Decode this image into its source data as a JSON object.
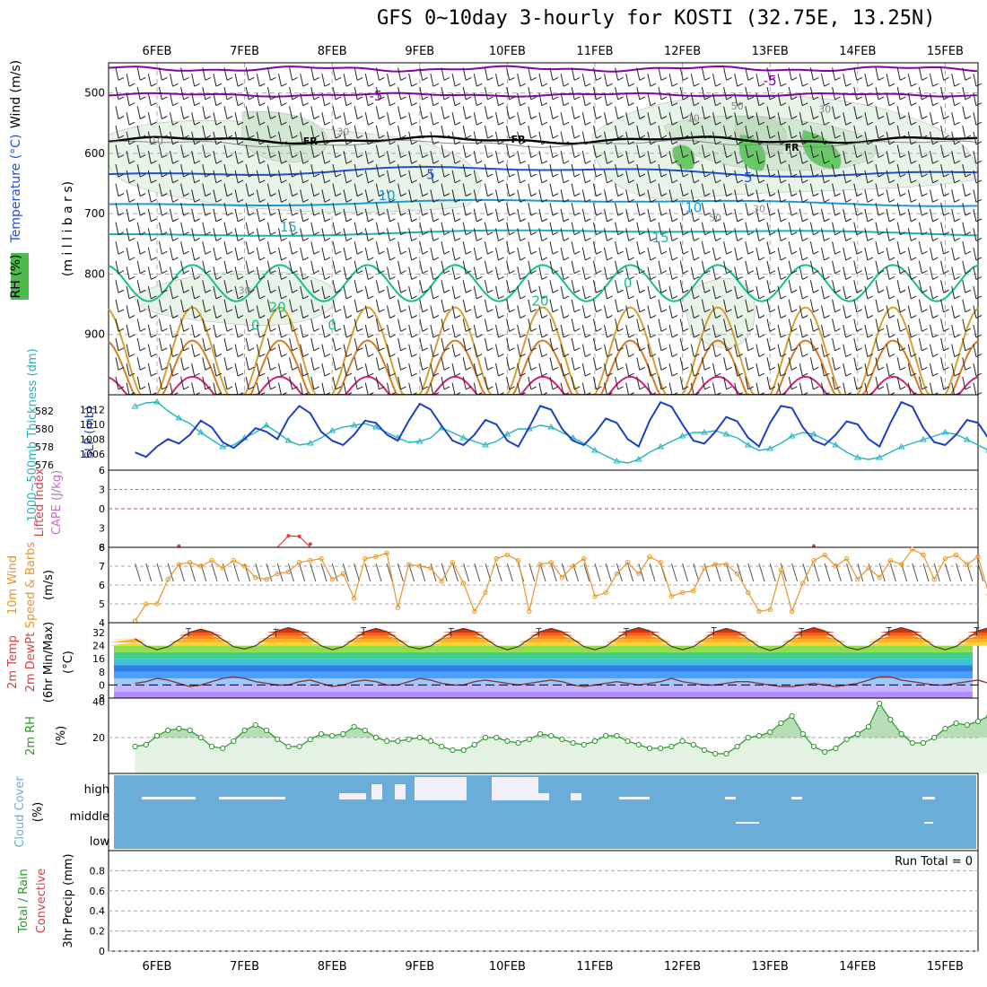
{
  "title": "GFS 0~10day 3-hourly for KOSTI (32.75E, 13.25N)",
  "dates": [
    "6FEB",
    "7FEB",
    "8FEB",
    "9FEB",
    "10FEB",
    "11FEB",
    "12FEB",
    "13FEB",
    "14FEB",
    "15FEB"
  ],
  "colors": {
    "freezing": "#000000",
    "temp_minus5": "#8800aa",
    "temp_5": "#1f4fd8",
    "temp_10": "#1a9ad6",
    "temp_15": "#16b2b8",
    "temp_20": "#12c08c",
    "temp_25": "#d6a030",
    "temp_30": "#d77a20",
    "temp_35": "#d41e7a",
    "slp": "#1a3fc8",
    "thickness": "#22b5c0",
    "lifted_index": "#d84040",
    "cape": "#c070c0",
    "wind": "#e8962a",
    "rh": "#2a9a2a",
    "rh_fill": "#e4f2e4",
    "cloud": "#6aadd8",
    "cloud_gap": "#f2f0f8"
  },
  "chart_data": [
    {
      "panel": "upper-air",
      "type": "contour",
      "ylabel": "milli bars",
      "legend_labels": [
        "Wind (m/s)",
        "Temperature (°C)",
        "RH (%)"
      ],
      "yticks": [
        500,
        600,
        700,
        800,
        900
      ],
      "ylim": [
        1000,
        450
      ],
      "contour_labels": [
        {
          "text": "-5",
          "x": "8FEB 12Z",
          "y": 505
        },
        {
          "text": "-5",
          "x": "13FEB 00Z",
          "y": 480
        },
        {
          "text": "FR",
          "x": "7FEB 18Z",
          "y": 578
        },
        {
          "text": "FR",
          "x": "10FEB 03Z",
          "y": 575
        },
        {
          "text": "FR",
          "x": "13FEB 06Z",
          "y": 588
        },
        {
          "text": "5",
          "x": "9FEB 03Z",
          "y": 635
        },
        {
          "text": "5",
          "x": "12FEB 18Z",
          "y": 640
        },
        {
          "text": "10",
          "x": "8FEB 15Z",
          "y": 670
        },
        {
          "text": "10",
          "x": "12FEB 03Z",
          "y": 690
        },
        {
          "text": "15",
          "x": "7FEB 12Z",
          "y": 722
        },
        {
          "text": "15",
          "x": "11FEB 18Z",
          "y": 740
        },
        {
          "text": "0",
          "x": "11FEB 09Z",
          "y": 815
        },
        {
          "text": "20",
          "x": "7FEB 09Z",
          "y": 855
        },
        {
          "text": "20",
          "x": "10FEB 09Z",
          "y": 845
        },
        {
          "text": "0",
          "x": "7FEB 03Z",
          "y": 885
        },
        {
          "text": "0",
          "x": "8FEB 00Z",
          "y": 885
        },
        {
          "text": "10",
          "x": "6FEB 00Z",
          "y": 578
        },
        {
          "text": "30",
          "x": "8FEB 03Z",
          "y": 562
        },
        {
          "text": "10",
          "x": "12FEB 03Z",
          "y": 540
        },
        {
          "text": "50",
          "x": "12FEB 15Z",
          "y": 520
        },
        {
          "text": "30",
          "x": "13FEB 15Z",
          "y": 525
        },
        {
          "text": "30",
          "x": "7FEB 00Z",
          "y": 825
        },
        {
          "text": "50",
          "x": "12FEB 09Z",
          "y": 705
        },
        {
          "text": "30",
          "x": "12FEB 21Z",
          "y": 690
        }
      ]
    },
    {
      "panel": "slp-thickness",
      "type": "line",
      "ylabel": "SLP (mb)",
      "ylabel2": "1000~500mb Thickness (dm)",
      "yticks": [
        1006,
        1008,
        1010,
        1012
      ],
      "yticks2": [
        576,
        578,
        580,
        582
      ],
      "ylim": [
        1003.8,
        1014
      ],
      "ylim2": [
        575.4,
        583.8
      ],
      "series": [
        {
          "name": "SLP",
          "values": [
            1006.2,
            1005.6,
            1007,
            1008,
            1007.4,
            1008.6,
            1010.5,
            1009.6,
            1007.6,
            1006.8,
            1008,
            1009.5,
            1009,
            1008,
            1010.8,
            1012.5,
            1011.5,
            1009,
            1007.8,
            1007.2,
            1008.6,
            1010.5,
            1010.2,
            1008.6,
            1007.8,
            1010.5,
            1012.8,
            1012,
            1009.8,
            1007.8,
            1007.2,
            1008.6,
            1010.6,
            1010,
            1007.8,
            1007,
            1009.6,
            1012.5,
            1012,
            1009.4,
            1007.8,
            1007.2,
            1008.8,
            1010.8,
            1010.2,
            1008,
            1007,
            1010.5,
            1013,
            1012.4,
            1010,
            1007.8,
            1007.4,
            1009,
            1011,
            1010.4,
            1008.2,
            1007,
            1010.2,
            1012.5,
            1012.2,
            1009.6,
            1007.8,
            1007.2,
            1008.6,
            1010.4,
            1010,
            1008,
            1007,
            1010.2,
            1013,
            1012.4,
            1009.5,
            1007.6,
            1007.2,
            1008.6,
            1010.6,
            1010.2,
            1008,
            1007.2,
            1010,
            1012.4,
            1012,
            1009.5,
            1007.6,
            1007.4,
            1009,
            1010.8,
            1010.2,
            1008.2,
            1007.2,
            1009.6,
            1012,
            1011.8,
            1010,
            1008,
            1007.6,
            1009.4,
            1011,
            1010.4,
            1008.8,
            1008.2,
            1010.2,
            1012.8
          ]
        },
        {
          "name": "Thickness",
          "values": [
            582.5,
            582.9,
            583,
            582,
            581.2,
            580.6,
            579.6,
            578.8,
            578,
            578.2,
            579,
            579.6,
            580.4,
            579.6,
            578.7,
            578.2,
            578.4,
            579,
            579.8,
            580.2,
            580.4,
            580.6,
            580.2,
            579.6,
            579,
            578.5,
            578.6,
            579,
            580.1,
            579.6,
            579,
            578.6,
            578.2,
            578.6,
            579.4,
            580,
            580,
            580.4,
            580.2,
            579.6,
            579,
            578.4,
            577.6,
            577,
            576.4,
            576.2,
            576.6,
            577.4,
            578,
            578.6,
            579.2,
            579.6,
            579.6,
            579.8,
            579.4,
            579,
            578.2,
            577.6,
            577.8,
            578.4,
            579.2,
            579.6,
            579.4,
            578.8,
            578.2,
            577.4,
            576.8,
            576.6,
            576.8,
            577.4,
            578,
            578.4,
            578.8,
            579.2,
            579.6,
            579.4,
            578.8,
            578.2,
            577.6,
            577,
            576.6,
            576.4,
            576.2,
            576.8,
            577.4,
            578,
            578.6,
            579.2,
            579.6,
            579.8,
            579.4,
            578.8,
            578.2,
            577.8,
            578.2,
            579,
            579.8,
            580.6,
            580.2,
            579.4,
            578.6,
            577.8,
            577,
            576.6
          ]
        }
      ]
    },
    {
      "panel": "stability",
      "type": "line",
      "ylabel": "Lifted Index",
      "ylabel2": "CAPE (J/kg)",
      "yticks": [
        -6,
        -3,
        0,
        3,
        6
      ],
      "ylim": [
        -6,
        6
      ],
      "series": [
        {
          "name": "Lifted Index",
          "values": [
            6,
            6,
            6,
            5.2,
            6,
            6,
            6,
            6,
            6,
            6,
            6,
            6,
            6,
            6,
            6,
            6,
            5.4,
            6,
            6,
            6,
            6,
            6,
            6,
            6,
            6,
            6,
            6,
            6,
            6,
            6,
            6,
            6,
            6,
            6,
            6,
            6,
            6,
            6,
            6,
            6,
            6,
            6,
            6,
            6,
            6,
            6,
            6,
            6,
            6,
            6,
            6,
            6,
            6,
            6,
            6,
            6,
            6,
            6,
            6,
            6,
            6,
            6,
            6,
            6,
            6,
            6,
            6,
            6,
            6,
            6,
            6,
            6,
            6,
            6,
            6,
            6,
            6,
            6,
            6,
            6,
            6,
            6,
            6,
            6,
            6,
            6,
            6,
            6,
            6,
            6,
            6,
            6,
            6,
            6,
            6,
            6,
            6,
            6,
            6,
            6,
            6,
            6,
            6,
            6
          ],
          "marks": [
            {
              "x": "7FEB 12Z",
              "y": 4.2
            },
            {
              "x": "7FEB 15Z",
              "y": 4.3
            },
            {
              "x": "7FEB 18Z",
              "y": 5.5
            },
            {
              "x": "6FEB 06Z",
              "y": 5.8
            },
            {
              "x": "13FEB 12Z",
              "y": 5.8
            }
          ]
        }
      ]
    },
    {
      "panel": "wind10m",
      "type": "line",
      "ylabel": "10m Wind Speed & Barbs (m/s)",
      "yticks": [
        4,
        5,
        6,
        7,
        8
      ],
      "ylim": [
        4,
        8
      ],
      "series": [
        {
          "name": "Wind Speed",
          "values": [
            4.1,
            5,
            5,
            6.3,
            7.1,
            7.2,
            7,
            7.3,
            6.9,
            7.3,
            7,
            6.4,
            6.3,
            6.6,
            6.7,
            7.2,
            7.3,
            7.4,
            6.3,
            6.6,
            5.3,
            7.4,
            7.5,
            7.7,
            4.8,
            7.1,
            7,
            6.9,
            6.2,
            7.2,
            6.1,
            4.6,
            5.6,
            7.4,
            7.6,
            7.3,
            4.6,
            7.1,
            7.2,
            6.4,
            7,
            7.4,
            5.4,
            5.6,
            6.6,
            7.2,
            6.6,
            7.5,
            7.2,
            5.4,
            5.6,
            5.7,
            6.9,
            7.1,
            7.1,
            6.6,
            5.6,
            4.6,
            4.7,
            6.8,
            4.6,
            6.1,
            7.3,
            7.6,
            7,
            7.4,
            6.3,
            6.9,
            6.4,
            7.3,
            7.1,
            7.9,
            7.6,
            6.3,
            7.4,
            7.6,
            7.1,
            7.5,
            5.5,
            6.9,
            7.7,
            7.2,
            7.4,
            6.9,
            7.4,
            6.6,
            6.9,
            6.4,
            4.5,
            7.1,
            5.3,
            4.4,
            5.6,
            5.3,
            5.1,
            6.4,
            6.5,
            5,
            6.9,
            5.6,
            4.6,
            4.6,
            4.8,
            6.6
          ]
        }
      ]
    },
    {
      "panel": "temperature2m",
      "type": "area",
      "ylabel": "2m Temp 2m DewPt (6hr Min/Max) (°C)",
      "yticks": [
        -8,
        0,
        8,
        16,
        24,
        32
      ],
      "ylim": [
        -8,
        38
      ],
      "series": [
        {
          "name": "2m Temp",
          "daily_min": [
            22,
            21.5,
            22,
            21.5,
            22,
            21.5,
            21.5,
            21.5,
            21,
            21.5
          ],
          "daily_max": [
            34.5,
            34,
            35,
            34.5,
            34.5,
            34.5,
            35,
            34.5,
            35,
            35
          ]
        },
        {
          "name": "2m DewPt",
          "values": [
            1,
            2,
            4,
            3,
            1,
            -1,
            0,
            2,
            4,
            5,
            4,
            2,
            1,
            0,
            0,
            2,
            3,
            1,
            -1,
            0,
            2,
            3,
            2,
            0,
            0,
            2,
            4,
            3,
            1,
            0,
            0,
            2,
            3,
            2,
            1,
            0,
            1,
            2,
            3,
            2,
            0,
            -1,
            0,
            1,
            2,
            1,
            0,
            1,
            2,
            4,
            2,
            1,
            0,
            0,
            1,
            2,
            2,
            1,
            0,
            -1,
            -1,
            0,
            1,
            0,
            -1,
            0,
            1,
            3,
            5,
            5,
            3,
            2,
            1,
            0,
            0,
            1,
            2,
            3,
            1,
            0,
            0,
            1,
            2,
            1,
            0,
            -1,
            -1,
            0,
            1,
            0,
            0,
            1,
            2,
            2,
            0,
            -1,
            -1,
            0,
            1,
            1,
            0,
            1,
            1,
            0
          ]
        }
      ]
    },
    {
      "panel": "rh2m",
      "type": "area",
      "ylabel": "2m RH (%)",
      "yticks": [
        20,
        40
      ],
      "ylim": [
        0,
        42
      ],
      "series": [
        {
          "name": "2m RH",
          "values": [
            15,
            16,
            21,
            24,
            25,
            24,
            20,
            15,
            14,
            18,
            24,
            27,
            24,
            19,
            15,
            15,
            19,
            22,
            21,
            22,
            26,
            24,
            20,
            18,
            18,
            19,
            20,
            18,
            15,
            13,
            13,
            16,
            20,
            20,
            18,
            17,
            19,
            22,
            21,
            19,
            17,
            16,
            18,
            21,
            21,
            18,
            16,
            14,
            14,
            15,
            18,
            16,
            13,
            11,
            11,
            15,
            20,
            21,
            23,
            28,
            32,
            22,
            15,
            12,
            14,
            19,
            22,
            26,
            39,
            30,
            22,
            17,
            17,
            20,
            25,
            28,
            27,
            29,
            32,
            25,
            19,
            16,
            15,
            16,
            19,
            20,
            21,
            21,
            22,
            19,
            16,
            14,
            11,
            10,
            11,
            15,
            18,
            20,
            21,
            21,
            20,
            19,
            18,
            19
          ]
        }
      ]
    },
    {
      "panel": "cloud-cover",
      "type": "heatmap",
      "ylabel": "Cloud Cover (%)",
      "levels": [
        "high",
        "middle",
        "low"
      ]
    },
    {
      "panel": "precip",
      "type": "bar",
      "ylabel": "3hr Precip (mm)",
      "ylabel2": "Total / Rain Convective",
      "yticks": [
        0,
        0.2,
        0.4,
        0.6,
        0.8
      ],
      "ylim": [
        0,
        1
      ],
      "note": "Run Total = 0",
      "series": [
        {
          "name": "Total",
          "values": []
        }
      ]
    }
  ],
  "axis_labels": {
    "wind": "Wind (m/s)",
    "temperature": "Temperature (°C)",
    "rh": "RH (%)",
    "millibars": "(m i l l i b a r s)",
    "thickness": "1000~500mb Thickness (dm)",
    "slp": "SLP (mb)",
    "lifted": "Lifted Index",
    "cape": "CAPE (J/kg)",
    "wind10_a": "10m Wind",
    "wind10_b": "Speed & Barbs",
    "wind10_c": "(m/s)",
    "temp_a": "2m Temp",
    "temp_b": "2m DewPt",
    "temp_c": "(6hr Min/Max)",
    "temp_d": "(°C)",
    "rh2m": "2m RH",
    "rh2m_unit": "(%)",
    "cloud": "Cloud Cover",
    "cloud_unit": "(%)",
    "precip": "3hr Precip (mm)",
    "precip_total": "Total / Rain",
    "precip_conv": "Convective",
    "run_total": "Run Total = 0"
  },
  "rh_tick_top": "40",
  "rh_tick_mid": "20"
}
